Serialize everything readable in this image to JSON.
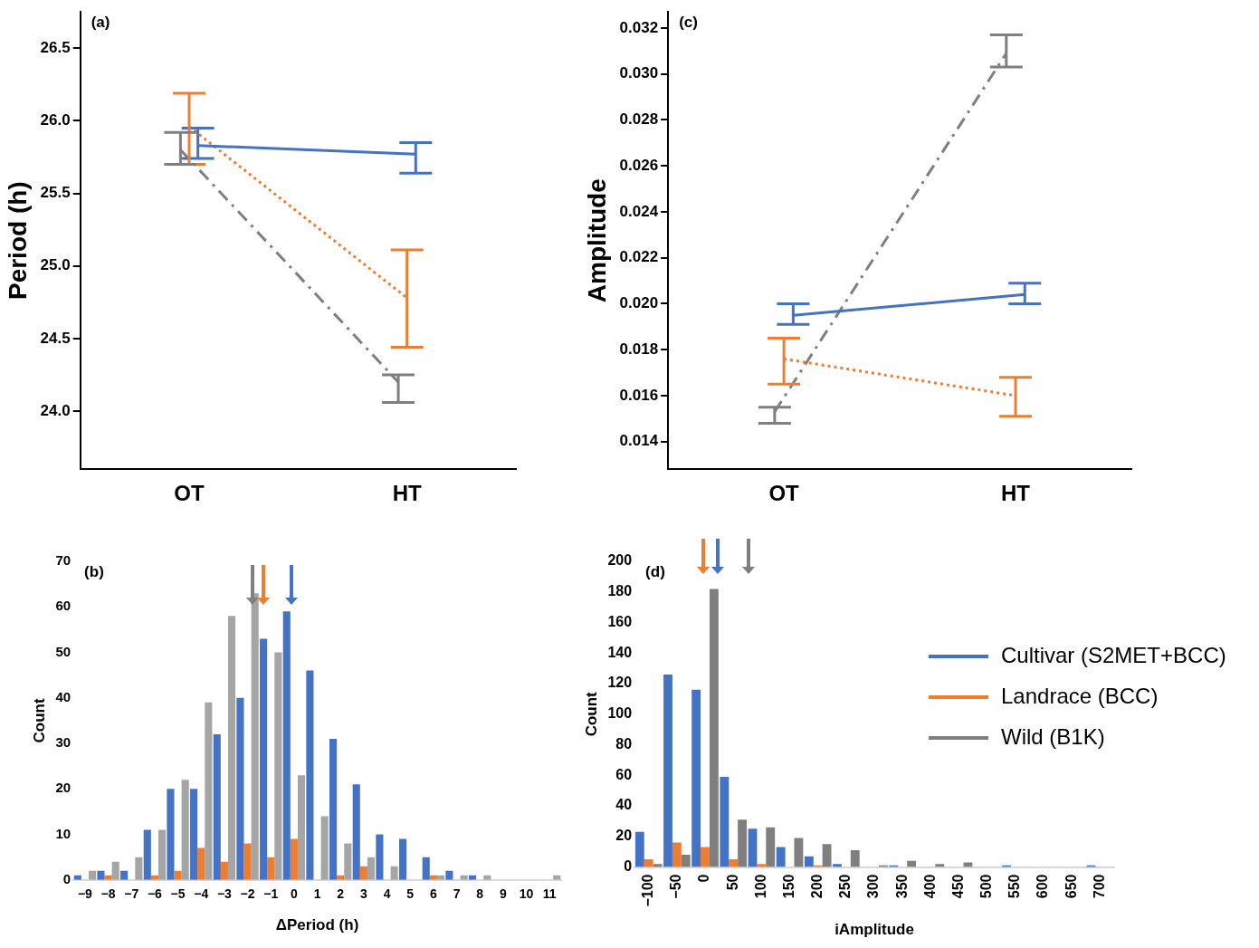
{
  "chart_data": [
    {
      "type": "line",
      "title": "(a)",
      "ylabel": "Period (h)",
      "categories": [
        "OT",
        "HT"
      ],
      "ylim": [
        23.6,
        26.75
      ],
      "yticks": [
        {
          "value": 24,
          "label": "24.0"
        },
        24.5,
        {
          "value": 25,
          "label": "25.0"
        },
        25.5,
        {
          "value": 26,
          "label": "26.0"
        },
        26.5
      ],
      "grid": false,
      "marker": "none",
      "series": [
        {
          "color": "#4472c4",
          "line_style": "solid",
          "values": [
            25.83,
            25.77
          ],
          "errors": [
            [
              25.74,
              25.95
            ],
            [
              25.64,
              25.85
            ]
          ]
        },
        {
          "color": "#ed7d31",
          "line_style": "dotted",
          "values": [
            25.96,
            24.78
          ],
          "errors": [
            [
              25.7,
              26.19
            ],
            [
              24.44,
              25.11
            ]
          ]
        },
        {
          "color": "#7f7f7f",
          "line_style": "dashed",
          "values": [
            25.8,
            24.2
          ],
          "errors": [
            [
              25.7,
              25.92
            ],
            [
              24.06,
              24.25
            ]
          ]
        }
      ]
    },
    {
      "type": "line",
      "title": "(c)",
      "ylabel": "Amplitude",
      "categories": [
        "OT",
        "HT"
      ],
      "ylim": [
        0.0128,
        0.0327
      ],
      "yticks": [
        0.014,
        0.016,
        0.018,
        {
          "value": 0.02,
          "label": "0.020"
        },
        0.022,
        0.024,
        0.026,
        0.028,
        {
          "value": 0.03,
          "label": "0.030"
        },
        0.032
      ],
      "grid": false,
      "marker": "none",
      "series": [
        {
          "color": "#4472c4",
          "line_style": "solid",
          "values": [
            0.0195,
            0.0204
          ],
          "errors": [
            [
              0.0191,
              0.02
            ],
            [
              0.02,
              0.0209
            ]
          ]
        },
        {
          "color": "#ed7d31",
          "line_style": "dotted",
          "values": [
            0.0176,
            0.016
          ],
          "errors": [
            [
              0.0165,
              0.0185
            ],
            [
              0.0151,
              0.0168
            ]
          ]
        },
        {
          "color": "#7f7f7f",
          "line_style": "dashed",
          "values": [
            0.0153,
            0.0309
          ],
          "errors": [
            [
              0.0148,
              0.0155
            ],
            [
              0.0303,
              0.0317
            ]
          ]
        }
      ]
    },
    {
      "type": "bar",
      "title": "(b)",
      "xlabel": "ΔPeriod (h)",
      "ylabel": "Count",
      "categories": [
        "−9",
        "−8",
        "−7",
        "−6",
        "−5",
        "−4",
        "−3",
        "−2",
        "−1",
        "0",
        "1",
        "2",
        "3",
        "4",
        "5",
        "6",
        "7",
        "8",
        "9",
        "10",
        "11"
      ],
      "ylim": [
        0,
        70
      ],
      "yticks": [
        0,
        10,
        20,
        30,
        40,
        50,
        60,
        70
      ],
      "grid": false,
      "series": [
        {
          "color": "#4472c4",
          "values": [
            1,
            2,
            2,
            11,
            20,
            20,
            32,
            40,
            53,
            59,
            46,
            31,
            21,
            10,
            9,
            5,
            2,
            1,
            0,
            0,
            0
          ]
        },
        {
          "color": "#ed7d31",
          "values": [
            0,
            1,
            0,
            1,
            2,
            7,
            4,
            8,
            5,
            9,
            0,
            1,
            3,
            0,
            0,
            1,
            0,
            0,
            0,
            0,
            0
          ]
        },
        {
          "color": "#a5a5a5",
          "values": [
            2,
            4,
            5,
            11,
            22,
            39,
            58,
            63,
            50,
            23,
            14,
            8,
            5,
            3,
            0,
            1,
            1,
            1,
            0,
            0,
            1
          ]
        }
      ]
    },
    {
      "type": "bar",
      "title": "(d)",
      "xlabel": "iAmplitude",
      "ylabel": "Count",
      "categories": [
        "−100",
        "−50",
        "0",
        "50",
        "100",
        "150",
        "200",
        "250",
        "300",
        "350",
        "400",
        "450",
        "500",
        "550",
        "600",
        "650",
        "700"
      ],
      "ylim": [
        0,
        200
      ],
      "yticks": [
        0,
        20,
        40,
        60,
        80,
        100,
        120,
        140,
        160,
        180,
        200
      ],
      "grid": false,
      "legend": "top right",
      "series": [
        {
          "name": "Cultivar (S2MET+BCC)",
          "color": "#4472c4",
          "values": [
            23,
            126,
            116,
            59,
            25,
            13,
            7,
            2,
            0,
            1,
            0,
            0,
            0,
            1,
            0,
            0,
            1
          ]
        },
        {
          "name": "Landrace (BCC)",
          "color": "#ed7d31",
          "values": [
            5,
            16,
            13,
            5,
            2,
            0,
            1,
            0,
            0,
            0,
            0,
            0,
            0,
            0,
            0,
            0,
            0
          ]
        },
        {
          "name": "Wild (B1K)",
          "color": "#7f7f7f",
          "values": [
            2,
            8,
            182,
            31,
            26,
            19,
            15,
            11,
            1,
            4,
            2,
            3,
            0,
            0,
            0,
            0,
            0
          ]
        }
      ]
    }
  ]
}
